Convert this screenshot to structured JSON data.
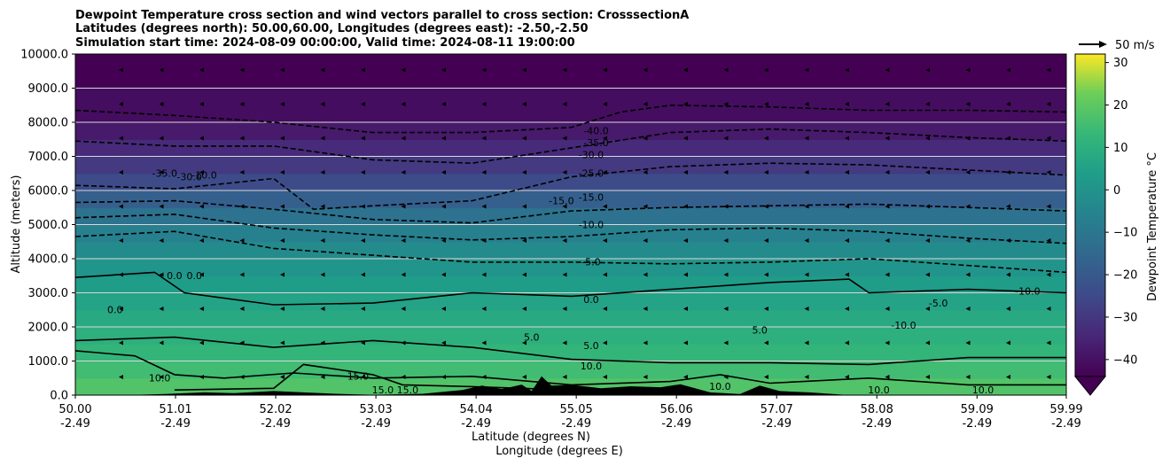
{
  "chart_data": {
    "type": "heatmap",
    "title_lines": [
      "Dewpoint Temperature cross section and wind vectors parallel to cross section: CrosssectionA",
      "Latitudes (degrees north): 50.00,60.00, Longitudes (degrees east): -2.50,-2.50",
      "Simulation start time: 2024-08-09 00:00:00, Valid time: 2024-08-11 19:00:00"
    ],
    "xlabel_primary": "Latitude (degrees N)",
    "xlabel_secondary": "Longitude (degrees E)",
    "ylabel": "Altitude (meters)",
    "x_ticks": [
      {
        "lat": "50.00",
        "lon": "-2.49"
      },
      {
        "lat": "51.01",
        "lon": "-2.49"
      },
      {
        "lat": "52.02",
        "lon": "-2.49"
      },
      {
        "lat": "53.03",
        "lon": "-2.49"
      },
      {
        "lat": "54.04",
        "lon": "-2.49"
      },
      {
        "lat": "55.05",
        "lon": "-2.49"
      },
      {
        "lat": "56.06",
        "lon": "-2.49"
      },
      {
        "lat": "57.07",
        "lon": "-2.49"
      },
      {
        "lat": "58.08",
        "lon": "-2.49"
      },
      {
        "lat": "59.09",
        "lon": "-2.49"
      },
      {
        "lat": "59.99",
        "lon": "-2.49"
      }
    ],
    "xlim": [
      50.0,
      59.99
    ],
    "y_ticks": [
      "0.0",
      "1000.0",
      "2000.0",
      "3000.0",
      "4000.0",
      "5000.0",
      "6000.0",
      "7000.0",
      "8000.0",
      "9000.0",
      "10000.0"
    ],
    "ylim": [
      0,
      10000
    ],
    "grid": "horizontal",
    "colorbar": {
      "label": "Dewpoint Temperature °C",
      "range": [
        -44,
        32
      ],
      "ticks": [
        "−40",
        "−30",
        "−20",
        "−10",
        "0",
        "10",
        "20",
        "30"
      ],
      "extend": "min",
      "colormap": "viridis"
    },
    "quiver_key": {
      "label": "50 m/s"
    },
    "dewpoint_levels": [
      {
        "altitude": 0,
        "dewpoint": 12
      },
      {
        "altitude": 500,
        "dewpoint": 10
      },
      {
        "altitude": 1000,
        "dewpoint": 7
      },
      {
        "altitude": 1500,
        "dewpoint": 5
      },
      {
        "altitude": 2000,
        "dewpoint": 3
      },
      {
        "altitude": 2500,
        "dewpoint": 1
      },
      {
        "altitude": 3000,
        "dewpoint": -1
      },
      {
        "altitude": 3500,
        "dewpoint": -3
      },
      {
        "altitude": 4000,
        "dewpoint": -6
      },
      {
        "altitude": 4500,
        "dewpoint": -9
      },
      {
        "altitude": 5000,
        "dewpoint": -13
      },
      {
        "altitude": 5500,
        "dewpoint": -18
      },
      {
        "altitude": 6000,
        "dewpoint": -24
      },
      {
        "altitude": 6500,
        "dewpoint": -29
      },
      {
        "altitude": 7000,
        "dewpoint": -33
      },
      {
        "altitude": 7500,
        "dewpoint": -37
      },
      {
        "altitude": 8000,
        "dewpoint": -40
      },
      {
        "altitude": 9000,
        "dewpoint": -43
      },
      {
        "altitude": 10000,
        "dewpoint": -45
      }
    ],
    "contours": [
      {
        "level": "15.0",
        "style": "solid",
        "points": [
          [
            51.0,
            150
          ],
          [
            52.0,
            200
          ],
          [
            52.3,
            900
          ],
          [
            53.0,
            600
          ],
          [
            53.3,
            300
          ],
          [
            54.0,
            250
          ],
          [
            55.0,
            150
          ]
        ]
      },
      {
        "level": "10.0",
        "style": "solid",
        "points": [
          [
            50.0,
            1300
          ],
          [
            50.6,
            1150
          ],
          [
            51.0,
            600
          ],
          [
            51.5,
            500
          ],
          [
            52.2,
            650
          ],
          [
            53.0,
            500
          ],
          [
            54.0,
            550
          ],
          [
            55.0,
            300
          ],
          [
            56.0,
            400
          ],
          [
            56.5,
            600
          ],
          [
            57.0,
            350
          ],
          [
            58.0,
            500
          ],
          [
            59.0,
            300
          ],
          [
            59.99,
            300
          ]
        ]
      },
      {
        "level": "5.0",
        "style": "solid",
        "points": [
          [
            50.0,
            1600
          ],
          [
            51.0,
            1700
          ],
          [
            52.0,
            1400
          ],
          [
            53.0,
            1600
          ],
          [
            54.0,
            1400
          ],
          [
            55.0,
            1050
          ],
          [
            56.0,
            950
          ],
          [
            57.0,
            950
          ],
          [
            58.0,
            900
          ],
          [
            59.0,
            1100
          ],
          [
            59.99,
            1100
          ]
        ]
      },
      {
        "level": "0.0",
        "style": "solid",
        "points": [
          [
            50.0,
            3450
          ],
          [
            50.8,
            3600
          ],
          [
            51.1,
            3000
          ],
          [
            52.0,
            2650
          ],
          [
            53.0,
            2700
          ],
          [
            54.0,
            3000
          ],
          [
            55.0,
            2900
          ],
          [
            56.0,
            3100
          ],
          [
            57.0,
            3300
          ],
          [
            57.8,
            3400
          ],
          [
            58.0,
            3000
          ],
          [
            59.0,
            3100
          ],
          [
            59.99,
            3000
          ]
        ]
      },
      {
        "level": "-5.0",
        "style": "dashed",
        "points": [
          [
            50.0,
            4650
          ],
          [
            51.0,
            4800
          ],
          [
            52.0,
            4300
          ],
          [
            53.0,
            4100
          ],
          [
            54.0,
            3900
          ],
          [
            55.0,
            3900
          ],
          [
            56.0,
            3850
          ],
          [
            57.0,
            3900
          ],
          [
            58.0,
            4000
          ],
          [
            59.0,
            3800
          ],
          [
            59.99,
            3600
          ]
        ]
      },
      {
        "level": "-10.0",
        "style": "dashed",
        "points": [
          [
            50.0,
            5200
          ],
          [
            51.0,
            5300
          ],
          [
            52.0,
            4900
          ],
          [
            53.0,
            4700
          ],
          [
            54.0,
            4550
          ],
          [
            55.0,
            4650
          ],
          [
            56.0,
            4850
          ],
          [
            57.0,
            4900
          ],
          [
            58.0,
            4800
          ],
          [
            59.0,
            4600
          ],
          [
            59.99,
            4450
          ]
        ]
      },
      {
        "level": "-15.0",
        "style": "dashed",
        "points": [
          [
            50.0,
            5650
          ],
          [
            51.0,
            5700
          ],
          [
            52.0,
            5450
          ],
          [
            53.0,
            5150
          ],
          [
            54.0,
            5050
          ],
          [
            55.0,
            5400
          ],
          [
            56.0,
            5500
          ],
          [
            57.0,
            5550
          ],
          [
            58.0,
            5600
          ],
          [
            59.0,
            5500
          ],
          [
            59.99,
            5400
          ]
        ]
      },
      {
        "level": "-25.0",
        "style": "dashed",
        "points": [
          [
            50.0,
            6150
          ],
          [
            51.0,
            6050
          ],
          [
            52.0,
            6350
          ],
          [
            52.4,
            5450
          ],
          [
            53.0,
            5550
          ],
          [
            54.0,
            5700
          ],
          [
            55.0,
            6400
          ],
          [
            56.0,
            6700
          ],
          [
            57.0,
            6800
          ],
          [
            58.0,
            6750
          ],
          [
            59.0,
            6600
          ],
          [
            59.99,
            6450
          ]
        ]
      },
      {
        "level": "-35.0",
        "style": "dashed",
        "points": [
          [
            50.0,
            7450
          ],
          [
            51.0,
            7300
          ],
          [
            52.0,
            7300
          ],
          [
            53.0,
            6900
          ],
          [
            54.0,
            6800
          ],
          [
            55.0,
            7250
          ],
          [
            56.0,
            7700
          ],
          [
            57.0,
            7800
          ],
          [
            58.0,
            7700
          ],
          [
            59.0,
            7550
          ],
          [
            59.99,
            7450
          ]
        ]
      },
      {
        "level": "-40.0",
        "style": "dashed",
        "points": [
          [
            50.0,
            8350
          ],
          [
            51.0,
            8200
          ],
          [
            52.0,
            8000
          ],
          [
            53.0,
            7700
          ],
          [
            54.0,
            7700
          ],
          [
            55.0,
            7850
          ],
          [
            55.5,
            8300
          ],
          [
            56.0,
            8500
          ],
          [
            57.0,
            8450
          ],
          [
            58.0,
            8350
          ],
          [
            59.0,
            8350
          ],
          [
            59.99,
            8300
          ]
        ]
      }
    ],
    "contour_labels": [
      {
        "text": "10.0",
        "x": 50.85,
        "y": 400
      },
      {
        "text": "15.0",
        "x": 52.85,
        "y": 450
      },
      {
        "text": "15.0",
        "x": 53.1,
        "y": 50
      },
      {
        "text": "15.0",
        "x": 53.35,
        "y": 50
      },
      {
        "text": "5.0",
        "x": 54.6,
        "y": 1600
      },
      {
        "text": "5.0",
        "x": 55.2,
        "y": 1350
      },
      {
        "text": "10.0",
        "x": 55.2,
        "y": 750
      },
      {
        "text": "0.0",
        "x": 55.2,
        "y": 2700
      },
      {
        "text": "10.0",
        "x": 56.5,
        "y": 150
      },
      {
        "text": "10.0",
        "x": 58.1,
        "y": 50
      },
      {
        "text": "10.0",
        "x": 59.15,
        "y": 50
      },
      {
        "text": "0.0",
        "x": 50.4,
        "y": 2400
      },
      {
        "text": "0.0",
        "x": 51.0,
        "y": 3400
      },
      {
        "text": "0.0",
        "x": 51.2,
        "y": 3400
      },
      {
        "text": "5.0",
        "x": 56.9,
        "y": 1800
      },
      {
        "text": "-5.0",
        "x": 55.2,
        "y": 3800
      },
      {
        "text": "-5.0",
        "x": 58.7,
        "y": 2600
      },
      {
        "text": "-10.0",
        "x": 55.2,
        "y": 4900
      },
      {
        "text": "-10.0",
        "x": 58.35,
        "y": 1950
      },
      {
        "text": "-10.0",
        "x": 59.6,
        "y": 2950
      },
      {
        "text": "-15.0",
        "x": 54.9,
        "y": 5600
      },
      {
        "text": "-15.0",
        "x": 55.2,
        "y": 5700
      },
      {
        "text": "-25.0",
        "x": 55.2,
        "y": 6400
      },
      {
        "text": "-30.0",
        "x": 55.2,
        "y": 6950
      },
      {
        "text": "-35.0",
        "x": 55.25,
        "y": 7300
      },
      {
        "text": "-40.0",
        "x": 55.25,
        "y": 7650
      },
      {
        "text": "-35.0",
        "x": 50.9,
        "y": 6400
      },
      {
        "text": "-30.0",
        "x": 51.15,
        "y": 6300
      },
      {
        "text": "-10.0",
        "x": 51.3,
        "y": 6350
      }
    ],
    "terrain": [
      [
        50.0,
        0
      ],
      [
        50.5,
        0
      ],
      [
        50.9,
        30
      ],
      [
        51.3,
        80
      ],
      [
        51.6,
        60
      ],
      [
        52.0,
        120
      ],
      [
        52.3,
        80
      ],
      [
        52.7,
        30
      ],
      [
        53.0,
        10
      ],
      [
        53.5,
        40
      ],
      [
        53.9,
        150
      ],
      [
        54.1,
        280
      ],
      [
        54.3,
        180
      ],
      [
        54.5,
        310
      ],
      [
        54.6,
        120
      ],
      [
        54.7,
        550
      ],
      [
        54.8,
        280
      ],
      [
        55.0,
        300
      ],
      [
        55.3,
        200
      ],
      [
        55.6,
        260
      ],
      [
        55.9,
        230
      ],
      [
        56.1,
        320
      ],
      [
        56.4,
        80
      ],
      [
        56.7,
        30
      ],
      [
        56.9,
        280
      ],
      [
        57.1,
        120
      ],
      [
        57.4,
        80
      ],
      [
        57.8,
        0
      ],
      [
        59.99,
        0
      ]
    ]
  }
}
